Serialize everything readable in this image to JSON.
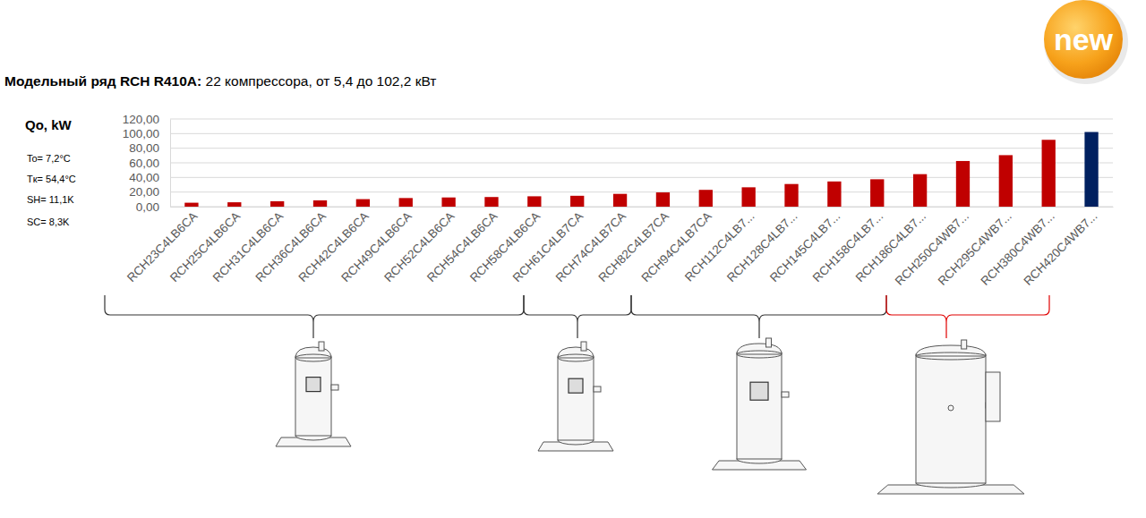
{
  "chart_data": {
    "type": "bar",
    "title": "Модельный ряд RCH R410A:",
    "subtitle": "22 компрессора, от 5,4 до 102,2 кВт",
    "y_label": "Qo, kW",
    "annotations": [
      "To= 7,2°C",
      "Tк= 54,4°C",
      "SH= 11,1K",
      "SC= 8,3K",
      "new"
    ],
    "categories": [
      "RCH23C4LB6CA",
      "RCH25C4LB6CA",
      "RCH31C4LB6CA",
      "RCH36C4LB6CA",
      "RCH42C4LB6CA",
      "RCH49C4LB6CA",
      "RCH52C4LB6CA",
      "RCH54C4LB6CA",
      "RCH58C4LB6CA",
      "RCH61C4LB7CA",
      "RCH74C4LB7CA",
      "RCH82C4LB7CA",
      "RCH94C4LB7CA",
      "RCH112C4LB7...",
      "RCH128C4LB7...",
      "RCH145C4LB7...",
      "RCH158C4LB7...",
      "RCH186C4LB7...",
      "RCH250C4WB7...",
      "RCH295C4WB7...",
      "RCH380C4WB7...",
      "RCH420C4WB7..."
    ],
    "values": [
      5.4,
      6.0,
      7.4,
      8.6,
      10.3,
      11.8,
      12.6,
      13.2,
      14.2,
      14.9,
      17.5,
      19.5,
      23.0,
      26.5,
      31.0,
      34.5,
      37.5,
      44.5,
      62.5,
      70.5,
      91.5,
      102.2
    ],
    "colors": [
      "#c00000",
      "#c00000",
      "#c00000",
      "#c00000",
      "#c00000",
      "#c00000",
      "#c00000",
      "#c00000",
      "#c00000",
      "#c00000",
      "#c00000",
      "#c00000",
      "#c00000",
      "#c00000",
      "#c00000",
      "#c00000",
      "#c00000",
      "#c00000",
      "#c00000",
      "#c00000",
      "#c00000",
      "#002060"
    ],
    "ylim": [
      0,
      120
    ],
    "yticks": [
      {
        "value": 0,
        "label": "0,00"
      },
      {
        "value": 20,
        "label": "20,00"
      },
      {
        "value": 40,
        "label": "40,00"
      },
      {
        "value": 60,
        "label": "60,00"
      },
      {
        "value": 80,
        "label": "80,00"
      },
      {
        "value": 100,
        "label": "100,00"
      },
      {
        "value": 120,
        "label": "120,00"
      }
    ],
    "grid": true
  }
}
